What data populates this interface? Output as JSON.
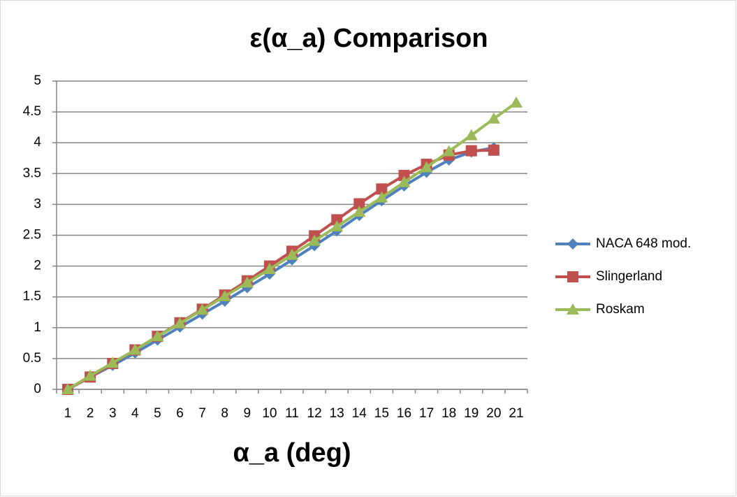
{
  "chart_data": {
    "type": "line",
    "title": "ε(α_a) Comparison",
    "x_label": "α_a (deg)",
    "categories": [
      1,
      2,
      3,
      4,
      5,
      6,
      7,
      8,
      9,
      10,
      11,
      12,
      13,
      14,
      15,
      16,
      17,
      18,
      19,
      20,
      21
    ],
    "series": [
      {
        "name": "NACA 648 mod.",
        "color": "#4f81bd",
        "marker": "diamond",
        "values": [
          0,
          0.2,
          0.39,
          0.59,
          0.8,
          1.01,
          1.22,
          1.43,
          1.65,
          1.87,
          2.1,
          2.33,
          2.57,
          2.82,
          3.06,
          3.3,
          3.52,
          3.72,
          3.85,
          3.92,
          null
        ]
      },
      {
        "name": "Slingerland",
        "color": "#c0504d",
        "marker": "square",
        "values": [
          0,
          0.2,
          0.42,
          0.64,
          0.86,
          1.08,
          1.3,
          1.53,
          1.76,
          2.0,
          2.24,
          2.49,
          2.75,
          3.01,
          3.25,
          3.47,
          3.65,
          3.8,
          3.87,
          3.88,
          null
        ]
      },
      {
        "name": "Roskam",
        "color": "#9bbb59",
        "marker": "triangle",
        "values": [
          0,
          0.22,
          0.43,
          0.64,
          0.86,
          1.07,
          1.29,
          1.51,
          1.73,
          1.95,
          2.18,
          2.41,
          2.64,
          2.88,
          3.11,
          3.36,
          3.6,
          3.86,
          4.12,
          4.39,
          4.65
        ]
      }
    ],
    "ylim": [
      0,
      5
    ],
    "yticks": [
      0,
      0.5,
      1,
      1.5,
      2,
      2.5,
      3,
      3.5,
      4,
      4.5,
      5
    ],
    "grid": true,
    "legend": "right"
  }
}
